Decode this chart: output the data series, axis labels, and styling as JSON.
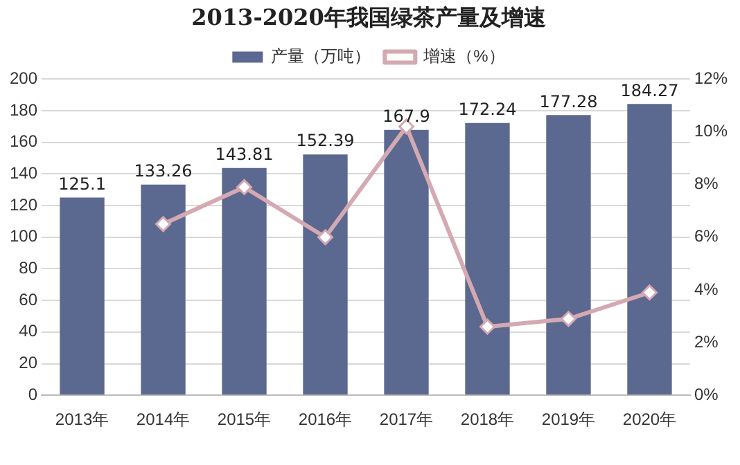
{
  "chart_data": {
    "type": "bar",
    "title": "2013-2020年我国绿茶产量及增速",
    "categories": [
      "2013年",
      "2014年",
      "2015年",
      "2016年",
      "2017年",
      "2018年",
      "2019年",
      "2020年"
    ],
    "series": [
      {
        "name": "产量（万吨）",
        "color": "#5b6890",
        "values": [
          125.1,
          133.26,
          143.81,
          152.39,
          167.9,
          172.24,
          177.28,
          184.27
        ],
        "value_labels": [
          "125.1",
          "133.26",
          "143.81",
          "152.39",
          "167.9",
          "172.24",
          "177.28",
          "184.27"
        ]
      },
      {
        "name": "增速（%）",
        "type": "line",
        "axis": "y2",
        "color": "#d4a9b2",
        "marker": "diamond",
        "values": [
          null,
          6.5,
          7.9,
          6.0,
          10.2,
          2.6,
          2.9,
          3.9
        ]
      }
    ],
    "ylim": [
      0,
      200
    ],
    "yticks": [
      0,
      20,
      40,
      60,
      80,
      100,
      120,
      140,
      160,
      180,
      200
    ],
    "y2lim": [
      0,
      12
    ],
    "y2ticks": [
      {
        "value": 0,
        "label": "0%"
      },
      {
        "value": 2,
        "label": "2%"
      },
      {
        "value": 4,
        "label": "4%"
      },
      {
        "value": 6,
        "label": "6%"
      },
      {
        "value": 8,
        "label": "8%"
      },
      {
        "value": 10,
        "label": "10%"
      },
      {
        "value": 12,
        "label": "12%"
      }
    ],
    "grid": "y",
    "legend": "top"
  }
}
